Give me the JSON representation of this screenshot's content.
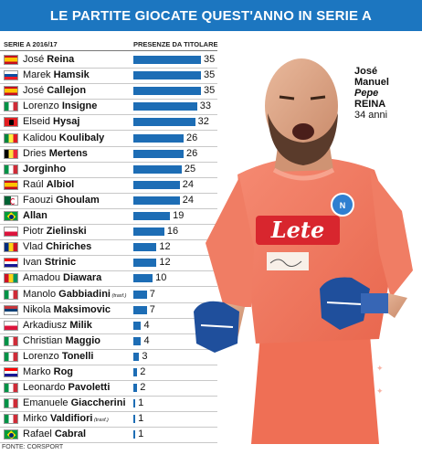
{
  "banner": {
    "title": "LE PARTITE GIOCATE QUEST'ANNO IN SERIE A"
  },
  "chart_data": {
    "type": "bar",
    "orientation": "horizontal",
    "title": "LE PARTITE GIOCATE QUEST'ANNO IN SERIE A",
    "category_header": "SERIE A 2016/17",
    "value_header": "PRESENZE DA TITOLARE",
    "xlim": [
      0,
      35
    ],
    "grid": false,
    "legend": "none",
    "bar_color": "#1d6db5",
    "players": [
      {
        "first": "José",
        "last": "Reina",
        "value": 35,
        "flag": "spain"
      },
      {
        "first": "Marek",
        "last": "Hamsik",
        "value": 35,
        "flag": "slovakia"
      },
      {
        "first": "José",
        "last": "Callejon",
        "value": 35,
        "flag": "spain"
      },
      {
        "first": "Lorenzo",
        "last": "Insigne",
        "value": 33,
        "flag": "italy"
      },
      {
        "first": "Elseid",
        "last": "Hysaj",
        "value": 32,
        "flag": "albania"
      },
      {
        "first": "Kalidou",
        "last": "Koulibaly",
        "value": 26,
        "flag": "senegal"
      },
      {
        "first": "Dries",
        "last": "Mertens",
        "value": 26,
        "flag": "belgium"
      },
      {
        "first": "",
        "last": "Jorginho",
        "value": 25,
        "flag": "italy"
      },
      {
        "first": "Raúl",
        "last": "Albiol",
        "value": 24,
        "flag": "spain"
      },
      {
        "first": "Faouzi",
        "last": "Ghoulam",
        "value": 24,
        "flag": "algeria"
      },
      {
        "first": "",
        "last": "Allan",
        "value": 19,
        "flag": "brazil"
      },
      {
        "first": "Piotr",
        "last": "Zielinski",
        "value": 16,
        "flag": "poland"
      },
      {
        "first": "Vlad",
        "last": "Chiriches",
        "value": 12,
        "flag": "romania"
      },
      {
        "first": "Ivan",
        "last": "Strinic",
        "value": 12,
        "flag": "croatia"
      },
      {
        "first": "Amadou",
        "last": "Diawara",
        "value": 10,
        "flag": "guinea"
      },
      {
        "first": "Manolo",
        "last": "Gabbiadini",
        "value": 7,
        "flag": "italy",
        "note": "(trasf.)"
      },
      {
        "first": "Nikola",
        "last": "Maksimovic",
        "value": 7,
        "flag": "serbia"
      },
      {
        "first": "Arkadiusz",
        "last": "Milik",
        "value": 4,
        "flag": "poland"
      },
      {
        "first": "Christian",
        "last": "Maggio",
        "value": 4,
        "flag": "italy"
      },
      {
        "first": "Lorenzo",
        "last": "Tonelli",
        "value": 3,
        "flag": "italy"
      },
      {
        "first": "Marko",
        "last": "Rog",
        "value": 2,
        "flag": "croatia"
      },
      {
        "first": "Leonardo",
        "last": "Pavoletti",
        "value": 2,
        "flag": "italy"
      },
      {
        "first": "Emanuele",
        "last": "Giaccherini",
        "value": 1,
        "flag": "italy"
      },
      {
        "first": "Mirko",
        "last": "Valdifiori",
        "value": 1,
        "flag": "italy",
        "note": "(trasf.)"
      },
      {
        "first": "Rafael",
        "last": "Cabral",
        "value": 1,
        "flag": "brazil"
      }
    ]
  },
  "photo": {
    "caption_first": "José",
    "caption_middle": "Manuel",
    "caption_nick": "Pepe",
    "caption_last": "REINA",
    "caption_age": "34 anni",
    "shirt_sponsor": "Lete",
    "shirt_color": "#f2765c",
    "glove_color": "#1f4f9c"
  },
  "source": "FONTE: CORSPORT"
}
